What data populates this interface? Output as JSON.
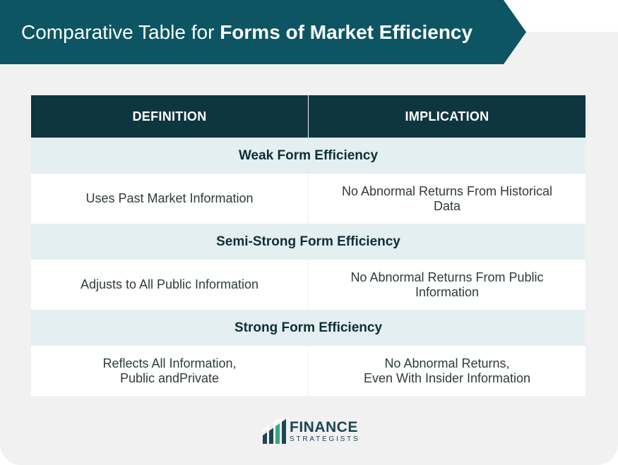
{
  "banner": {
    "title_regular": "Comparative Table for ",
    "title_bold": "Forms of Market Efficiency",
    "color": "#0d5563"
  },
  "table": {
    "headers": [
      "DEFINITION",
      "IMPLICATION"
    ],
    "sections": [
      {
        "title": "Weak Form Efficiency",
        "definition": "Uses Past Market Information",
        "implication": "No Abnormal Returns From Historical\nData"
      },
      {
        "title": "Semi-Strong Form Efficiency",
        "definition": "Adjusts to All Public Information",
        "implication": "No Abnormal Returns From Public\nInformation"
      },
      {
        "title": "Strong Form Efficiency",
        "definition": "Reflects All Information,\nPublic andPrivate",
        "implication": "No Abnormal Returns,\nEven With Insider Information"
      }
    ]
  },
  "logo": {
    "name": "FINANCE",
    "sub": "STRATEGISTS",
    "icon": "finance-strategists-logo-icon"
  }
}
